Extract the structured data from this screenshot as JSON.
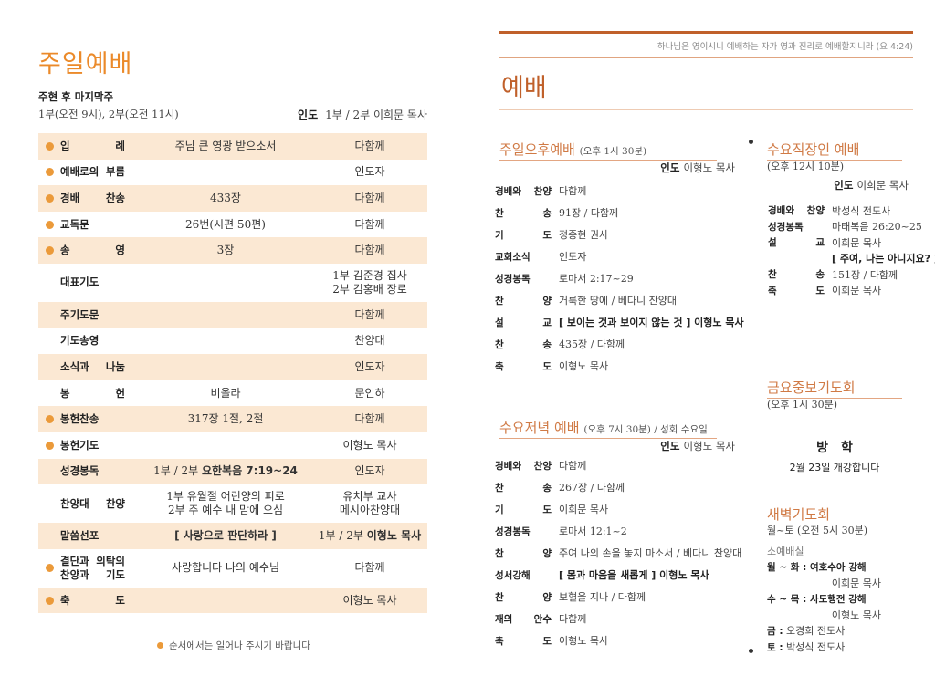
{
  "left": {
    "title": "주일예배",
    "subtitle": "주현 후 마지막주",
    "times": "1부(오전 9시), 2부(오전 11시)",
    "leader_label": "인도",
    "leader": "1부 / 2부 이희문 목사",
    "rows": [
      {
        "label": "입　　례",
        "content": "주님 큰 영광 받으소서",
        "leader": "다함께",
        "stand": true
      },
      {
        "label": "예배로의 부름",
        "content": "",
        "leader": "인도자",
        "stand": true
      },
      {
        "label": "경배 찬송",
        "content": "433장",
        "leader": "다함께",
        "stand": true
      },
      {
        "label": "교독문",
        "content": "26번(시편 50편)",
        "leader": "다함께",
        "stand": true
      },
      {
        "label": "송　　영",
        "content": "3장",
        "leader": "다함께",
        "stand": true
      },
      {
        "label": "대표기도",
        "content": "",
        "leader": "1부 김준경 집사",
        "leader2": "2부 김홍배 장로",
        "stand": false
      },
      {
        "label": "주기도문",
        "content": "",
        "leader": "다함께",
        "stand": false
      },
      {
        "label": "기도송영",
        "content": "",
        "leader": "찬양대",
        "stand": false
      },
      {
        "label": "소식과 나눔",
        "content": "",
        "leader": "인도자",
        "stand": false
      },
      {
        "label": "봉　　헌",
        "content": "비올라",
        "leader": "문인하",
        "stand": false
      },
      {
        "label": "봉헌찬송",
        "content": "317장 1절, 2절",
        "leader": "다함께",
        "stand": true
      },
      {
        "label": "봉헌기도",
        "content": "",
        "leader": "이형노 목사",
        "stand": true
      },
      {
        "label": "성경봉독",
        "content": "1부 / 2부",
        "content_bold": "요한복음 7:19~24",
        "leader": "인도자",
        "stand": false
      },
      {
        "label": "찬양대 찬양",
        "content": "1부 유월절 어린양의 피로",
        "content2": "2부 주 예수 내 맘에 오심",
        "leader": "유치부 교사",
        "leader2": "메시아찬양대",
        "stand": false
      },
      {
        "label": "말씀선포",
        "content_bold": "[ 사랑으로 판단하라 ]",
        "leader": "1부 / 2부",
        "leader_bold": "이형노 목사",
        "stand": false
      },
      {
        "label": "결단과 의탁의",
        "label2": "찬양과 기도",
        "content": "사랑합니다 나의 예수님",
        "leader": "다함께",
        "stand": true
      },
      {
        "label": "축　　도",
        "content": "",
        "leader": "이형노 목사",
        "stand": true
      }
    ],
    "note": "순서에서는 일어나 주시기 바랍니다"
  },
  "right": {
    "quote": "하나님은 영이시니 예배하는 자가 영과 진리로 예배할지니라 (요 4:24)",
    "title": "예배",
    "sunday_pm": {
      "title": "주일오후예배",
      "time": "(오후 1시 30분)",
      "leader_label": "인도",
      "leader": "이형노 목사",
      "items": [
        [
          "경배와 찬양",
          "다함께"
        ],
        [
          "찬　　송",
          "91장 / 다함께"
        ],
        [
          "기　　도",
          "정종현 권사"
        ],
        [
          "교회소식",
          "인도자"
        ],
        [
          "성경봉독",
          "로마서 2:17~29"
        ],
        [
          "찬　　양",
          "거룩한 땅에 / 베다니 찬양대"
        ],
        [
          "설　　교",
          "[ 보이는 것과 보이지 않는 것 ] 이형노 목사"
        ],
        [
          "찬　　송",
          "435장 / 다함께"
        ],
        [
          "축　　도",
          "이형노 목사"
        ]
      ]
    },
    "wed_pm": {
      "title": "수요저녁 예배",
      "time": "(오후 7시 30분) / 성회 수요일",
      "leader_label": "인도",
      "leader": "이형노 목사",
      "items": [
        [
          "경배와 찬양",
          "다함께"
        ],
        [
          "찬　　송",
          "267장 / 다함께"
        ],
        [
          "기　　도",
          "이희문 목사"
        ],
        [
          "성경봉독",
          "로마서 12:1~2"
        ],
        [
          "찬　　양",
          "주여 나의 손을 놓지 마소서 / 베다니 찬양대"
        ],
        [
          "성서강해",
          "[ 몸과 마음을 새롭게 ] 이형노 목사"
        ],
        [
          "찬　　양",
          "보혈을 지나 /  다함께"
        ],
        [
          "재의 안수",
          "다함께"
        ],
        [
          "축　　도",
          "이형노 목사"
        ]
      ]
    },
    "wed_work": {
      "title": "수요직장인 예배",
      "time": "(오후 12시 10분)",
      "leader_label": "인도",
      "leader": "이희문 목사",
      "items": [
        [
          "경배와 찬양",
          "박성식 전도사"
        ],
        [
          "성경봉독",
          "마태복음 26:20~25"
        ],
        [
          "설　　교",
          "이희문 목사"
        ],
        [
          "",
          "[ 주여, 나는 아니지요? ]"
        ],
        [
          "찬　　송",
          "151장 / 다함께"
        ],
        [
          "축　　도",
          "이희문 목사"
        ]
      ]
    },
    "fri": {
      "title": "금요중보기도회",
      "time": "(오후 1시 30분)",
      "notice_title": "방　학",
      "notice": "2월 23일 개강합니다"
    },
    "dawn": {
      "title": "새벽기도회",
      "time": "월~토 (오전 5시 30분)",
      "place": "소예배실",
      "lines": [
        {
          "bold": "월 ~ 화 : 여호수아 강해",
          "sub": "이희문 목사"
        },
        {
          "bold": "수 ~ 목 : 사도행전 강해",
          "sub": "이형노 목사"
        },
        {
          "bold": "금 :",
          "text": " 오경희 전도사"
        },
        {
          "bold": "토 :",
          "text": " 박성식 전도사"
        }
      ]
    }
  },
  "colors": {
    "accent": "#eb8a2a",
    "brand": "#c0602a",
    "row_shade": "#fbe8d3"
  }
}
